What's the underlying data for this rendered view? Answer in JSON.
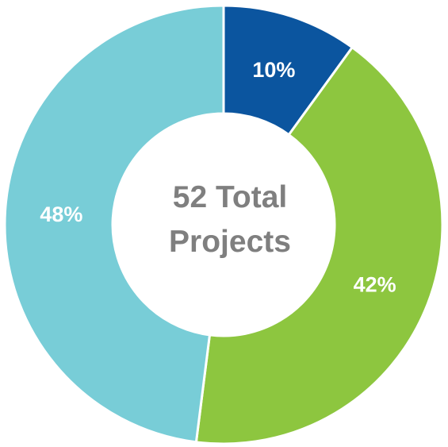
{
  "chart_data": {
    "type": "pie",
    "variant": "donut",
    "center_label": {
      "line1": "52 Total",
      "line2": "Projects"
    },
    "slices": [
      {
        "value": 10,
        "label": "10%",
        "color": "#0b559f"
      },
      {
        "value": 42,
        "label": "42%",
        "color": "#8dc63f"
      },
      {
        "value": 48,
        "label": "48%",
        "color": "#78cdd7"
      }
    ],
    "start_angle_deg": 0,
    "direction": "clockwise",
    "legend": "none"
  }
}
